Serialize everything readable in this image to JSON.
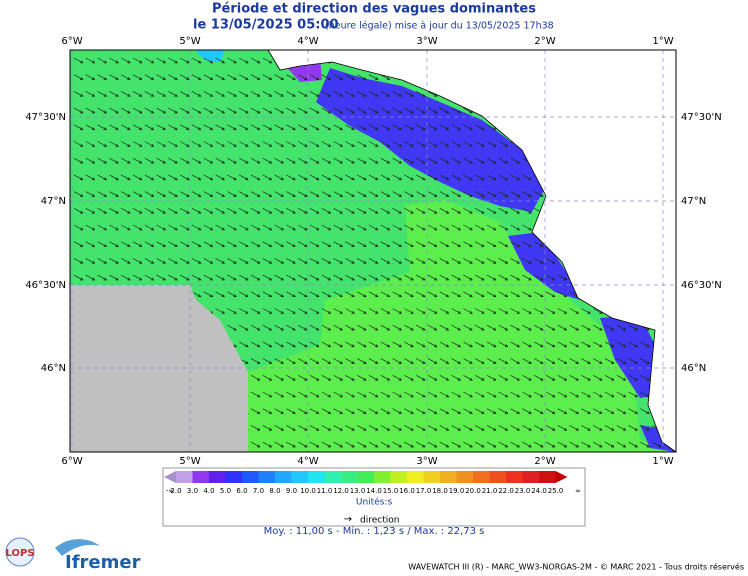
{
  "header": {
    "title": "Période et direction des vagues dominantes",
    "date": "le 13/05/2025 05:00",
    "update": "(heure légale) mise à jour du 13/05/2025 17h38"
  },
  "map": {
    "lon_labels": [
      "6°W",
      "5°W",
      "4°W",
      "3°W",
      "2°W",
      "1°W"
    ],
    "lat_labels": [
      "47°30'N",
      "47°N",
      "46°30'N",
      "46°N"
    ]
  },
  "legend": {
    "ticks": [
      "-∞",
      "2.0",
      "3.0",
      "4.0",
      "5.0",
      "6.0",
      "7.0",
      "8.0",
      "9.0",
      "10.0",
      "11.0",
      "12.0",
      "13.0",
      "14.0",
      "15.0",
      "16.0",
      "17.0",
      "18.0",
      "19.0",
      "20.0",
      "21.0",
      "22.0",
      "23.0",
      "24.0",
      "25.0",
      "∞"
    ],
    "colors": [
      "#a890c8",
      "#c0a0e8",
      "#9038f0",
      "#6020f0",
      "#3030ff",
      "#2058ff",
      "#2080ff",
      "#20a8ff",
      "#20c8ff",
      "#20e4f0",
      "#30f0b0",
      "#38ee80",
      "#44ec58",
      "#80f030",
      "#c0f020",
      "#f0f020",
      "#f0d020",
      "#f0b020",
      "#f09020",
      "#f07020",
      "#f05020",
      "#f03020",
      "#e02020",
      "#d01010",
      "#c00000"
    ],
    "unit": "Unités:s",
    "direction_arrow": "→",
    "direction": "direction"
  },
  "stats": "Moy. : 11,00 s   -   Min. : 1,23 s / Max. : 22,73 s",
  "logos": {
    "lops": "LOPS",
    "ifremer": "Ifremer"
  },
  "footer": "WAVEWATCH III (R) - MARC_WW3-NORGAS-2M - © MARC 2021 - Tous droits réservés"
}
